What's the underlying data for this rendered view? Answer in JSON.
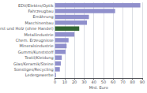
{
  "chart_data": {
    "type": "bar",
    "orientation": "horizontal",
    "categories": [
      "EDV/Elektro/Optik",
      "Fahrzeugbau",
      "Ernährung",
      "Maschinenbau",
      "Forst und Holz (ohne Handel)",
      "Metallindustrie",
      "Chem. Erzeugnisse",
      "Mineralsindustrie",
      "Gummi/Kunststoff",
      "Textil/Kleidung",
      "Glas/Keramik/Steine",
      "Sonstiges/Recycling",
      "Ledergewerbe"
    ],
    "values": [
      88,
      62,
      35,
      33,
      25,
      20,
      14,
      12,
      11,
      7,
      6,
      5,
      1
    ],
    "colors": [
      "#9090cc",
      "#9090cc",
      "#9090cc",
      "#9090cc",
      "#336633",
      "#9090cc",
      "#9090cc",
      "#9090cc",
      "#9090cc",
      "#9090cc",
      "#9090cc",
      "#9090cc",
      "#9090cc"
    ],
    "xlabel": "Mrd. Euro",
    "xlim": [
      0,
      90
    ],
    "xticks": [
      0,
      10,
      20,
      30,
      40,
      50,
      60,
      70,
      80,
      90
    ],
    "grid": true
  }
}
